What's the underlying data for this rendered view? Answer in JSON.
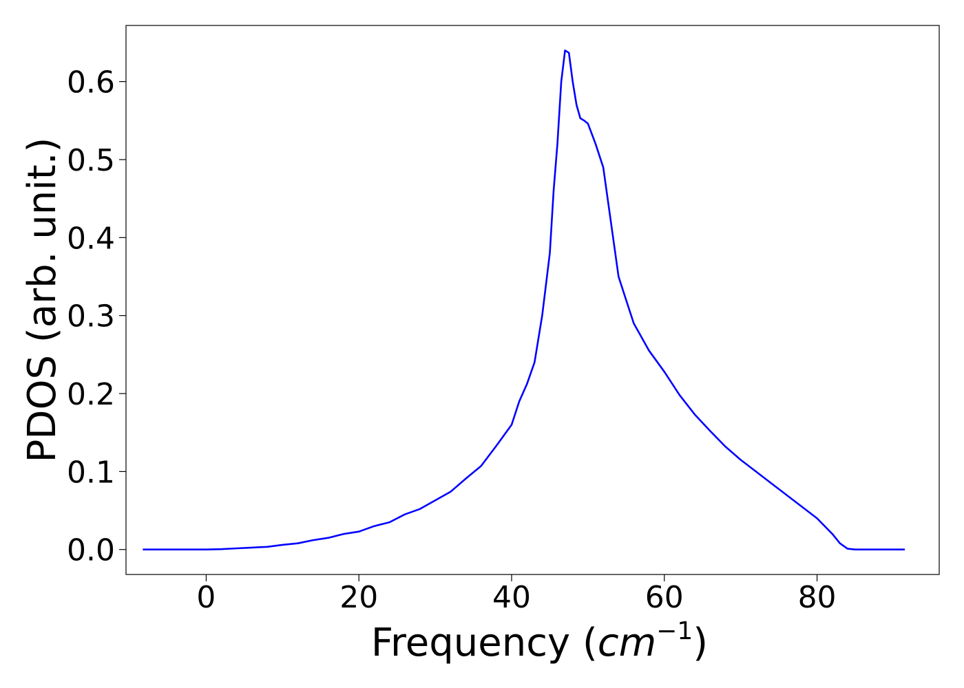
{
  "chart_data": {
    "type": "line",
    "title": "",
    "xlabel": {
      "text": "Frequency (",
      "math_base": "cm",
      "math_sup": "−1",
      "close": ")"
    },
    "ylabel": "PDOS (arb. unit.)",
    "xlim": [
      -10.5,
      96
    ],
    "ylim": [
      -0.032,
      0.672
    ],
    "xticks": [
      0,
      20,
      40,
      60,
      80
    ],
    "xtick_labels": [
      "0",
      "20",
      "40",
      "60",
      "80"
    ],
    "yticks": [
      0.0,
      0.1,
      0.2,
      0.3,
      0.4,
      0.5,
      0.6
    ],
    "ytick_labels": [
      "0.0",
      "0.1",
      "0.2",
      "0.3",
      "0.4",
      "0.5",
      "0.6"
    ],
    "grid": false,
    "legend": "none",
    "series": [
      {
        "color": "#0000ff",
        "x": [
          -8.3,
          0,
          2,
          4,
          6,
          8,
          10,
          12,
          14,
          16,
          18,
          20,
          22,
          24,
          26,
          28,
          30,
          32,
          34,
          36,
          38,
          40,
          41,
          42,
          43,
          44,
          45,
          45.5,
          46,
          46.5,
          47,
          47.5,
          48,
          48.5,
          49,
          49.5,
          50,
          51,
          52,
          53,
          54,
          55,
          56,
          58,
          60,
          62,
          64,
          66,
          68,
          70,
          72,
          74,
          76,
          78,
          80,
          82,
          83,
          84,
          85,
          87,
          91.5
        ],
        "y": [
          0.0,
          0.0,
          0.0005,
          0.0015,
          0.0025,
          0.0035,
          0.006,
          0.008,
          0.012,
          0.015,
          0.02,
          0.023,
          0.03,
          0.035,
          0.045,
          0.052,
          0.063,
          0.074,
          0.091,
          0.107,
          0.133,
          0.16,
          0.19,
          0.212,
          0.24,
          0.3,
          0.38,
          0.46,
          0.52,
          0.6,
          0.64,
          0.637,
          0.6,
          0.57,
          0.553,
          0.55,
          0.546,
          0.52,
          0.49,
          0.42,
          0.35,
          0.32,
          0.29,
          0.255,
          0.228,
          0.198,
          0.173,
          0.152,
          0.132,
          0.115,
          0.1,
          0.085,
          0.07,
          0.055,
          0.04,
          0.02,
          0.008,
          0.001,
          0.0,
          0.0,
          0.0
        ]
      }
    ]
  }
}
